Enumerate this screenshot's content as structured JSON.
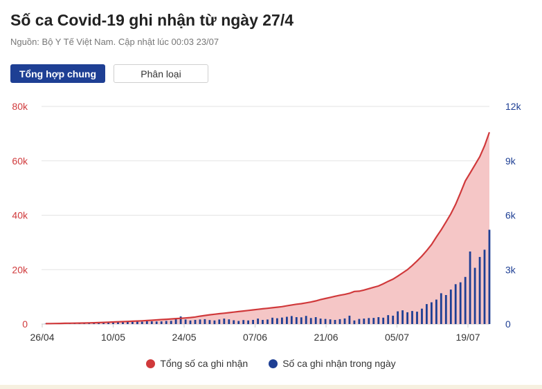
{
  "header": {
    "title": "Số ca Covid-19 ghi nhận từ ngày 27/4",
    "source": "Nguồn: Bộ Y Tế Việt Nam. Cập nhật lúc 00:03 23/07"
  },
  "tabs": [
    {
      "label": "Tổng hợp chung",
      "active": true
    },
    {
      "label": "Phân loại",
      "active": false
    }
  ],
  "colors": {
    "cumulative": "#d0393b",
    "cumulative_fill": "#f5c6c6",
    "daily": "#1e3f94",
    "tab_active": "#1e3f94"
  },
  "chart_data": {
    "type": "line+bar",
    "x_labels": [
      "26/04",
      "10/05",
      "24/05",
      "07/06",
      "21/06",
      "05/07",
      "19/07"
    ],
    "x_start": "2021-04-27",
    "x_end": "2021-07-22",
    "ylim_left": [
      0,
      80000
    ],
    "ylim_right": [
      0,
      12000
    ],
    "left_ticks": [
      "0",
      "20k",
      "40k",
      "60k",
      "80k"
    ],
    "right_ticks": [
      "0",
      "3k",
      "6k",
      "9k",
      "12k"
    ],
    "legend_position": "bottom-center",
    "grid": true,
    "series": [
      {
        "name": "Tổng số ca ghi nhận",
        "type": "area-line",
        "axis": "left",
        "values": [
          150,
          180,
          210,
          240,
          270,
          300,
          330,
          360,
          390,
          430,
          480,
          540,
          600,
          680,
          760,
          840,
          900,
          970,
          1040,
          1120,
          1200,
          1300,
          1400,
          1520,
          1650,
          1760,
          1880,
          2000,
          2100,
          2240,
          2400,
          2600,
          2900,
          3150,
          3400,
          3600,
          3800,
          4000,
          4200,
          4400,
          4600,
          4800,
          5000,
          5200,
          5400,
          5600,
          5800,
          6000,
          6200,
          6400,
          6700,
          7000,
          7300,
          7500,
          7800,
          8100,
          8500,
          9000,
          9400,
          9800,
          10200,
          10600,
          10900,
          11300,
          12000,
          12100,
          12500,
          13000,
          13500,
          14000,
          14800,
          15700,
          16500,
          17600,
          18800,
          20000,
          21500,
          23200,
          25000,
          27000,
          29200,
          32000,
          34600,
          37500,
          40500,
          44000,
          48200,
          52600,
          55500,
          58500,
          61500,
          65500,
          70500
        ]
      },
      {
        "name": "Số ca ghi nhận trong ngày",
        "type": "bar",
        "axis": "right",
        "values": [
          20,
          15,
          30,
          25,
          40,
          35,
          30,
          45,
          50,
          60,
          70,
          60,
          80,
          90,
          100,
          110,
          120,
          150,
          180,
          200,
          130,
          160,
          150,
          140,
          150,
          170,
          180,
          300,
          420,
          250,
          200,
          230,
          250,
          270,
          220,
          200,
          250,
          300,
          260,
          210,
          170,
          220,
          200,
          230,
          300,
          230,
          250,
          350,
          320,
          360,
          400,
          440,
          380,
          370,
          450,
          330,
          380,
          300,
          280,
          260,
          230,
          270,
          310,
          460,
          200,
          280,
          300,
          330,
          340,
          380,
          350,
          490,
          460,
          700,
          760,
          650,
          720,
          680,
          850,
          1100,
          1200,
          1350,
          1700,
          1600,
          1900,
          2200,
          2300,
          2600,
          4000,
          3100,
          3700,
          4100,
          5200
        ]
      }
    ]
  }
}
